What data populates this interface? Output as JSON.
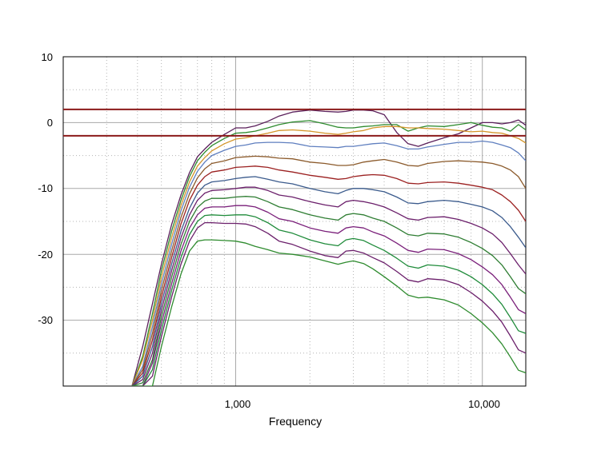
{
  "chart_data": {
    "type": "line",
    "title": "",
    "xlabel": "Frequency",
    "ylabel": "",
    "x_scale": "log",
    "xlim": [
      200,
      15000
    ],
    "ylim": [
      -40,
      10
    ],
    "grid": true,
    "x_tick_labels": [
      "1,000",
      "10,000"
    ],
    "y_tick_labels": [
      "10",
      "0",
      "-10",
      "-20",
      "-30"
    ],
    "reference_lines": [
      {
        "y": 2,
        "color": "#8b1a1a"
      },
      {
        "y": -2,
        "color": "#8b1a1a"
      }
    ],
    "x": [
      380,
      420,
      460,
      500,
      550,
      600,
      650,
      700,
      750,
      800,
      900,
      1000,
      1100,
      1200,
      1350,
      1500,
      1700,
      2000,
      2300,
      2600,
      2800,
      3000,
      3300,
      3600,
      4000,
      4500,
      5000,
      5500,
      6000,
      7000,
      8000,
      9000,
      10000,
      11000,
      12000,
      13000,
      14000,
      15000
    ],
    "series": [
      {
        "color": "#5a1f5a",
        "values": [
          -40,
          -34,
          -27.5,
          -21.5,
          -15.5,
          -11,
          -7.6,
          -5.2,
          -4,
          -3,
          -1.8,
          -0.8,
          -0.8,
          -0.5,
          0.2,
          1,
          1.6,
          1.9,
          1.7,
          1.6,
          1.7,
          1.9,
          1.9,
          1.8,
          1.2,
          -1.5,
          -3.2,
          -3.6,
          -3.1,
          -2.3,
          -1.7,
          -0.8,
          0,
          0,
          -0.2,
          0,
          0.4,
          -0.4
        ]
      },
      {
        "color": "#2e8b2e",
        "values": [
          -40,
          -35.5,
          -29,
          -22.5,
          -16.5,
          -11.8,
          -8.2,
          -5.8,
          -4.5,
          -3.5,
          -2.4,
          -1.6,
          -1.5,
          -1.3,
          -0.8,
          -0.3,
          0.1,
          0.3,
          -0.2,
          -0.7,
          -0.8,
          -0.8,
          -0.6,
          -0.5,
          -0.3,
          -0.3,
          -1.3,
          -0.8,
          -0.5,
          -0.6,
          -0.3,
          0,
          -0.4,
          -0.7,
          -0.8,
          -1.3,
          -0.3,
          -1.1
        ]
      },
      {
        "color": "#d4962a",
        "values": [
          -40,
          -36,
          -30,
          -23.5,
          -17.5,
          -12.6,
          -9,
          -6.6,
          -5.3,
          -4.3,
          -3.2,
          -2.5,
          -2.3,
          -2,
          -1.6,
          -1.2,
          -1.1,
          -1.3,
          -1.6,
          -1.8,
          -1.6,
          -1.4,
          -1.2,
          -0.8,
          -0.6,
          -0.6,
          -0.8,
          -0.8,
          -0.9,
          -1,
          -1.2,
          -1.4,
          -1.3,
          -1.5,
          -1.6,
          -2,
          -2.4,
          -3.1
        ]
      },
      {
        "color": "#5f7fbf",
        "values": [
          -40,
          -37,
          -31,
          -24.5,
          -18.5,
          -13.4,
          -9.8,
          -7.4,
          -6,
          -5,
          -4.2,
          -3.6,
          -3.4,
          -3.1,
          -3,
          -3,
          -3.1,
          -3.6,
          -3.7,
          -3.8,
          -3.6,
          -3.6,
          -3.4,
          -3.2,
          -3.1,
          -3.5,
          -4,
          -4,
          -3.7,
          -3.3,
          -3,
          -3,
          -2.8,
          -3,
          -3.4,
          -3.8,
          -4.6,
          -5.8
        ]
      },
      {
        "color": "#8b5a2b",
        "values": [
          -40,
          -37.5,
          -32,
          -25.5,
          -19.5,
          -14.4,
          -10.8,
          -8.4,
          -7,
          -6.2,
          -5.8,
          -5.3,
          -5.2,
          -5.1,
          -5.2,
          -5.4,
          -5.5,
          -6,
          -6.2,
          -6.5,
          -6.5,
          -6.4,
          -6,
          -5.8,
          -5.6,
          -6,
          -6.5,
          -6.6,
          -6.2,
          -5.9,
          -5.8,
          -5.9,
          -6,
          -6.2,
          -6.6,
          -7.2,
          -8.2,
          -10
        ]
      },
      {
        "color": "#9b2020",
        "values": [
          -40,
          -38,
          -33,
          -26.5,
          -20.5,
          -15.4,
          -11.8,
          -9.5,
          -8.2,
          -7.5,
          -7.2,
          -6.8,
          -6.7,
          -6.6,
          -6.8,
          -7.2,
          -7.5,
          -8,
          -8.3,
          -8.6,
          -8.5,
          -8.2,
          -8,
          -7.9,
          -8,
          -8.5,
          -9.2,
          -9.3,
          -9.1,
          -9,
          -9.2,
          -9.5,
          -9.8,
          -10.2,
          -11,
          -12,
          -13.3,
          -15
        ]
      },
      {
        "color": "#3a5a8c",
        "values": [
          -40,
          -38.5,
          -34,
          -27.5,
          -21.5,
          -16.5,
          -13,
          -10.7,
          -9.5,
          -9,
          -8.8,
          -8.5,
          -8.3,
          -8.2,
          -8.6,
          -9,
          -9.3,
          -10,
          -10.5,
          -10.8,
          -10.3,
          -10,
          -10,
          -10.2,
          -10.5,
          -11.3,
          -12.2,
          -12.3,
          -12,
          -11.8,
          -12,
          -12.4,
          -12.8,
          -13.4,
          -14.4,
          -15.8,
          -17.4,
          -19
        ]
      },
      {
        "color": "#6b1f6b",
        "values": [
          -40,
          -39,
          -35,
          -28.5,
          -22.5,
          -17.5,
          -14,
          -11.8,
          -10.7,
          -10.3,
          -10.2,
          -10,
          -9.8,
          -9.8,
          -10.3,
          -11,
          -11.3,
          -12,
          -12.5,
          -12.8,
          -12,
          -11.8,
          -12,
          -12.3,
          -12.8,
          -13.7,
          -14.6,
          -14.8,
          -14.4,
          -14.3,
          -14.7,
          -15.3,
          -16,
          -16.9,
          -18.2,
          -19.9,
          -21.6,
          -23
        ]
      },
      {
        "color": "#2e7d32",
        "values": [
          -40,
          -39.5,
          -36,
          -29.5,
          -23.5,
          -18.5,
          -15,
          -12.9,
          -11.9,
          -11.5,
          -11.5,
          -11.3,
          -11.2,
          -11.3,
          -12,
          -12.8,
          -13.2,
          -14,
          -14.5,
          -14.8,
          -14,
          -13.8,
          -14,
          -14.5,
          -15,
          -16,
          -17,
          -17.2,
          -16.8,
          -16.9,
          -17.4,
          -18.2,
          -19.1,
          -20.2,
          -21.6,
          -23.4,
          -25.2,
          -26
        ]
      },
      {
        "color": "#7a1f7a",
        "values": [
          -40,
          -40,
          -36.5,
          -30.5,
          -24.5,
          -19.5,
          -16,
          -14,
          -13,
          -12.8,
          -12.8,
          -12.6,
          -12.6,
          -12.8,
          -13.6,
          -14.6,
          -15,
          -16,
          -16.5,
          -16.8,
          -16,
          -15.8,
          -16,
          -16.6,
          -17.2,
          -18.3,
          -19.4,
          -19.7,
          -19.2,
          -19.3,
          -19.9,
          -20.8,
          -21.9,
          -23.1,
          -24.6,
          -26.5,
          -28.4,
          -29
        ]
      },
      {
        "color": "#1f8b3a",
        "values": [
          -40,
          -40,
          -37.5,
          -31.5,
          -25.5,
          -20.5,
          -17,
          -15,
          -14.1,
          -14,
          -14.1,
          -14,
          -14,
          -14.3,
          -15.2,
          -16.3,
          -16.8,
          -17.8,
          -18.4,
          -18.7,
          -17.8,
          -17.6,
          -17.9,
          -18.6,
          -19.4,
          -20.6,
          -21.8,
          -22.1,
          -21.6,
          -21.8,
          -22.4,
          -23.4,
          -24.6,
          -26,
          -27.6,
          -29.6,
          -31.6,
          -32
        ]
      },
      {
        "color": "#6b1f6b",
        "values": [
          -40,
          -40,
          -38.5,
          -32.5,
          -26.5,
          -21.5,
          -18,
          -16,
          -15.2,
          -15.2,
          -15.3,
          -15.3,
          -15.4,
          -15.8,
          -16.8,
          -18,
          -18.5,
          -19.5,
          -20.2,
          -20.5,
          -19.5,
          -19.4,
          -19.8,
          -20.5,
          -21.3,
          -22.6,
          -23.9,
          -24.2,
          -23.7,
          -23.9,
          -24.6,
          -25.8,
          -27.1,
          -28.6,
          -30.3,
          -32.4,
          -34.5,
          -35
        ]
      },
      {
        "color": "#2e8b2e",
        "values": [
          -40,
          -40,
          -40,
          -34,
          -28,
          -23,
          -19.5,
          -18,
          -17.8,
          -17.8,
          -17.9,
          -18,
          -18.3,
          -18.8,
          -19.3,
          -19.8,
          -20,
          -20.4,
          -21,
          -21.5,
          -21.2,
          -21,
          -21.4,
          -22.2,
          -23.4,
          -24.8,
          -26.2,
          -26.6,
          -26.5,
          -26.9,
          -27.7,
          -29,
          -30.4,
          -31.9,
          -33.6,
          -35.6,
          -37.6,
          -38
        ]
      }
    ]
  }
}
